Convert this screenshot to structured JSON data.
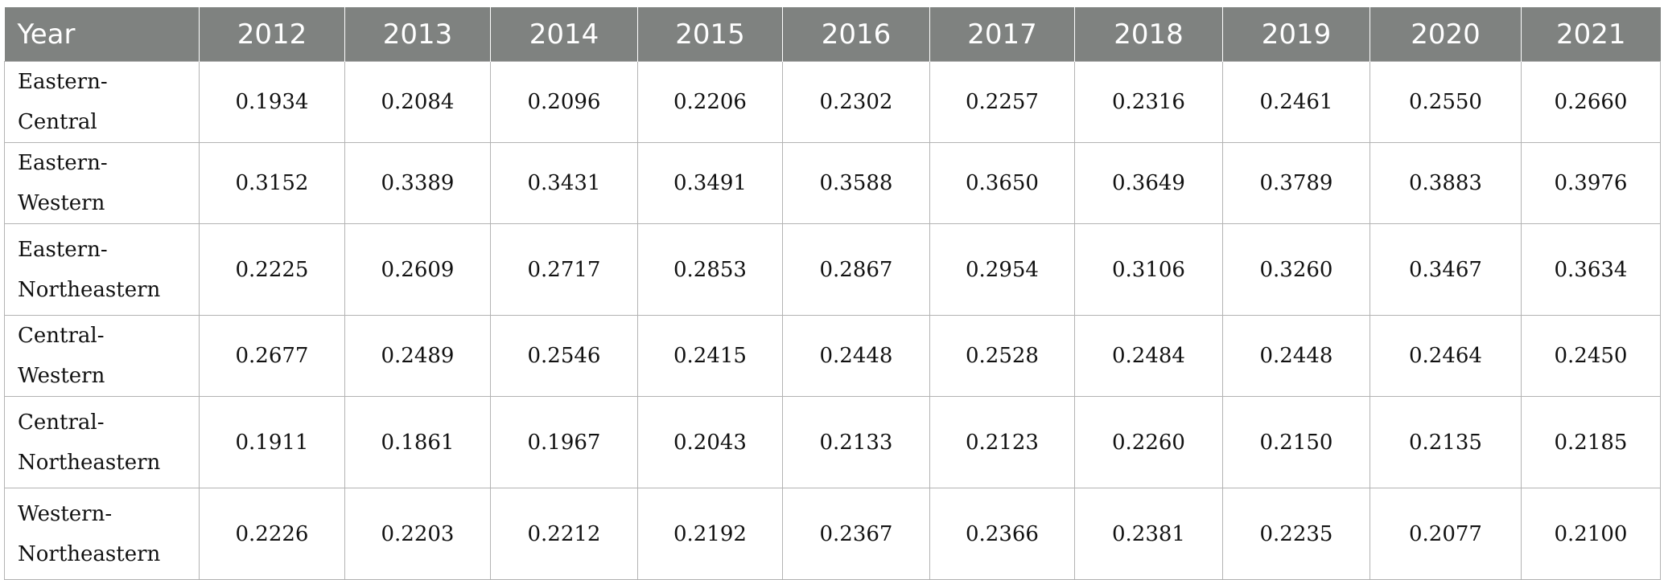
{
  "table": {
    "header_label": "Year",
    "years": [
      "2012",
      "2013",
      "2014",
      "2015",
      "2016",
      "2017",
      "2018",
      "2019",
      "2020",
      "2021"
    ],
    "rows": [
      {
        "label": "Eastern-Central",
        "values": [
          "0.1934",
          "0.2084",
          "0.2096",
          "0.2206",
          "0.2302",
          "0.2257",
          "0.2316",
          "0.2461",
          "0.2550",
          "0.2660"
        ]
      },
      {
        "label": "Eastern-Western",
        "values": [
          "0.3152",
          "0.3389",
          "0.3431",
          "0.3491",
          "0.3588",
          "0.3650",
          "0.3649",
          "0.3789",
          "0.3883",
          "0.3976"
        ]
      },
      {
        "label": "Eastern-Northeastern",
        "label_lines": [
          "Eastern-",
          "Northeastern"
        ],
        "values": [
          "0.2225",
          "0.2609",
          "0.2717",
          "0.2853",
          "0.2867",
          "0.2954",
          "0.3106",
          "0.3260",
          "0.3467",
          "0.3634"
        ]
      },
      {
        "label": "Central-Western",
        "values": [
          "0.2677",
          "0.2489",
          "0.2546",
          "0.2415",
          "0.2448",
          "0.2528",
          "0.2484",
          "0.2448",
          "0.2464",
          "0.2450"
        ]
      },
      {
        "label": "Central-Northeastern",
        "label_lines": [
          "Central-",
          "Northeastern"
        ],
        "values": [
          "0.1911",
          "0.1861",
          "0.1967",
          "0.2043",
          "0.2133",
          "0.2123",
          "0.2260",
          "0.2150",
          "0.2135",
          "0.2185"
        ]
      },
      {
        "label": "Western-Northeastern",
        "label_lines": [
          "Western-",
          "Northeastern"
        ],
        "values": [
          "0.2226",
          "0.2203",
          "0.2212",
          "0.2192",
          "0.2367",
          "0.2366",
          "0.2381",
          "0.2235",
          "0.2077",
          "0.2100"
        ]
      }
    ]
  }
}
